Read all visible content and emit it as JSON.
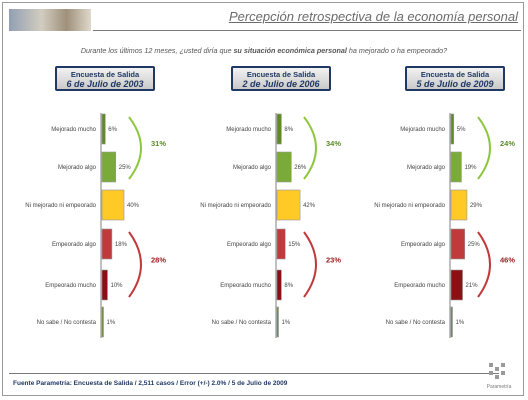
{
  "header": {
    "title": "Percepción retrospectiva de la economía personal",
    "question_pre": "Durante los últimos 12 meses, ¿usted diría que ",
    "question_bold": "su situación económica personal",
    "question_post": " ha mejorado o ha empeorado?"
  },
  "footer": {
    "source": "Fuente Parametría: Encuesta de Salida / 2,511 casos / Error (+/-) 2.0% / 5 de Julio de 2009",
    "logo_text": "Parametría"
  },
  "colors": {
    "mejorado_mucho": "#5e8a2c",
    "mejorado_algo": "#7aab3a",
    "ni": "#ffc926",
    "empeorado_algo": "#c0393b",
    "empeorado_mucho": "#8b0f14",
    "improved_bracket": "#8dc63f",
    "worsened_bracket": "#c0393b",
    "improved_text": "#5e8a2c",
    "worsened_text": "#a01c1f"
  },
  "chart_data": {
    "type": "bar",
    "categories": [
      "Mejorado mucho",
      "Mejorado algo",
      "Ni mejorado ni empeorado",
      "Empeorado algo",
      "Empeorado mucho",
      "No sabe / No contesta"
    ],
    "xlim": [
      0,
      50
    ],
    "panels": [
      {
        "title_line1": "Encuesta de Salida",
        "title_line2": "6 de Julio de 2003",
        "values": [
          6,
          25,
          40,
          18,
          10,
          1
        ],
        "improved_total": "31%",
        "worsened_total": "28%"
      },
      {
        "title_line1": "Encuesta de Salida",
        "title_line2": "2 de Julio de 2006",
        "values": [
          8,
          26,
          42,
          15,
          8,
          1
        ],
        "improved_total": "34%",
        "worsened_total": "23%"
      },
      {
        "title_line1": "Encuesta de Salida",
        "title_line2": "5 de Julio de 2009",
        "values": [
          5,
          19,
          29,
          25,
          21,
          1
        ],
        "improved_total": "24%",
        "worsened_total": "46%"
      }
    ]
  }
}
